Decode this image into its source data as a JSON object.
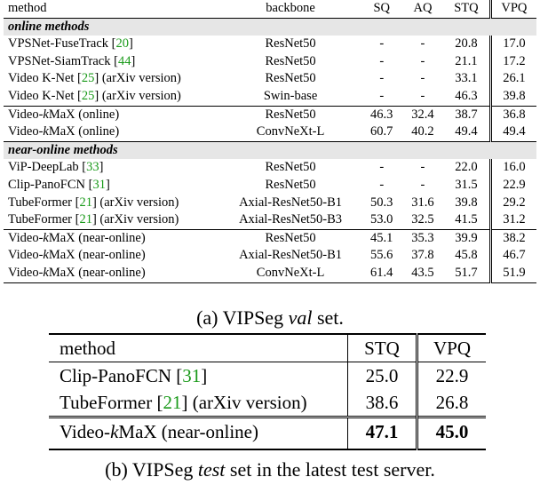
{
  "tableA": {
    "headers": {
      "method": "method",
      "backbone": "backbone",
      "sq": "SQ",
      "aq": "AQ",
      "stq": "STQ",
      "vpq": "VPQ"
    },
    "online_label": "online methods",
    "online": [
      {
        "pre": "VPSNet-FuseTrack [",
        "cite": "20",
        "post": "]",
        "backbone": "ResNet50",
        "sq": "-",
        "aq": "-",
        "stq": "20.8",
        "vpq": "17.0"
      },
      {
        "pre": "VPSNet-SiamTrack [",
        "cite": "44",
        "post": "]",
        "backbone": "ResNet50",
        "sq": "-",
        "aq": "-",
        "stq": "21.1",
        "vpq": "17.2"
      },
      {
        "pre": "Video K-Net [",
        "cite": "25",
        "post": "] (arXiv version)",
        "backbone": "ResNet50",
        "sq": "-",
        "aq": "-",
        "stq": "33.1",
        "vpq": "26.1"
      },
      {
        "pre": "Video K-Net [",
        "cite": "25",
        "post": "] (arXiv version)",
        "backbone": "Swin-base",
        "sq": "-",
        "aq": "-",
        "stq": "46.3",
        "vpq": "39.8"
      }
    ],
    "online_ours": [
      {
        "pre": "Video-",
        "k": "k",
        "post": "MaX (online)",
        "backbone": "ResNet50",
        "sq": "46.3",
        "aq": "32.4",
        "stq": "38.7",
        "vpq": "36.8"
      },
      {
        "pre": "Video-",
        "k": "k",
        "post": "MaX (online)",
        "backbone": "ConvNeXt-L",
        "sq": "60.7",
        "aq": "40.2",
        "stq": "49.4",
        "vpq": "49.4"
      }
    ],
    "near_label": "near-online methods",
    "near": [
      {
        "pre": "ViP-DeepLab [",
        "cite": "33",
        "post": "]",
        "backbone": "ResNet50",
        "sq": "-",
        "aq": "-",
        "stq": "22.0",
        "vpq": "16.0"
      },
      {
        "pre": "Clip-PanoFCN [",
        "cite": "31",
        "post": "]",
        "backbone": "ResNet50",
        "sq": "-",
        "aq": "-",
        "stq": "31.5",
        "vpq": "22.9"
      },
      {
        "pre": "TubeFormer [",
        "cite": "21",
        "post": "] (arXiv version)",
        "backbone": "Axial-ResNet50-B1",
        "sq": "50.3",
        "aq": "31.6",
        "stq": "39.8",
        "vpq": "29.2"
      },
      {
        "pre": "TubeFormer [",
        "cite": "21",
        "post": "] (arXiv version)",
        "backbone": "Axial-ResNet50-B3",
        "sq": "53.0",
        "aq": "32.5",
        "stq": "41.5",
        "vpq": "31.2"
      }
    ],
    "near_ours": [
      {
        "pre": "Video-",
        "k": "k",
        "post": "MaX (near-online)",
        "backbone": "ResNet50",
        "sq": "45.1",
        "aq": "35.3",
        "stq": "39.9",
        "vpq": "38.2"
      },
      {
        "pre": "Video-",
        "k": "k",
        "post": "MaX (near-online)",
        "backbone": "Axial-ResNet50-B1",
        "sq": "55.6",
        "aq": "37.8",
        "stq": "45.8",
        "vpq": "46.7"
      },
      {
        "pre": "Video-",
        "k": "k",
        "post": "MaX (near-online)",
        "backbone": "ConvNeXt-L",
        "sq": "61.4",
        "aq": "43.5",
        "stq": "51.7",
        "vpq": "51.9"
      }
    ],
    "caption": {
      "pre": "(a) VIPSeg ",
      "em": "val",
      "post": " set."
    }
  },
  "tableB": {
    "headers": {
      "method": "method",
      "stq": "STQ",
      "vpq": "VPQ"
    },
    "rows": [
      {
        "pre": "Clip-PanoFCN [",
        "cite": "31",
        "post": "]",
        "stq": "25.0",
        "vpq": "22.9"
      },
      {
        "pre": "TubeFormer [",
        "cite": "21",
        "post": "] (arXiv version)",
        "stq": "38.6",
        "vpq": "26.8"
      }
    ],
    "ours": {
      "pre": "Video-",
      "k": "k",
      "post": "MaX (near-online)",
      "stq": "47.1",
      "vpq": "45.0"
    },
    "caption": {
      "pre": "(b) VIPSeg ",
      "em": "test",
      "post": " set in the latest test server."
    }
  }
}
